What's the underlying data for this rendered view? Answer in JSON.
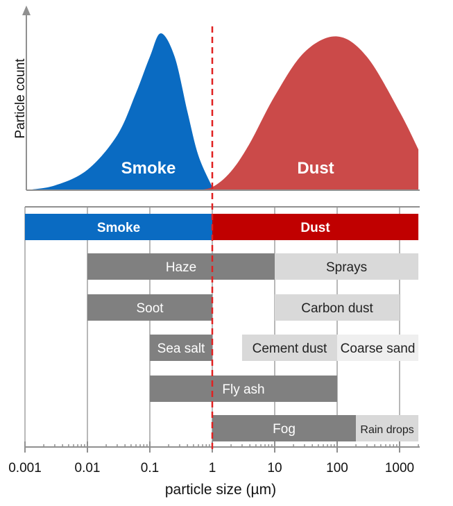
{
  "chart_data": [
    {
      "type": "area",
      "ylabel": "Particle count",
      "xscale": "log",
      "xlim": [
        0.001,
        2000
      ],
      "grid": false,
      "divider_at": 1,
      "series": [
        {
          "name": "Smoke",
          "color": "#0a6bc2",
          "peak_x": 0.15,
          "x": [
            0.001,
            0.003,
            0.01,
            0.03,
            0.06,
            0.1,
            0.15,
            0.25,
            0.4,
            0.6,
            1.0
          ],
          "y": [
            0.0,
            0.03,
            0.13,
            0.35,
            0.62,
            0.85,
            1.0,
            0.85,
            0.5,
            0.22,
            0.02
          ]
        },
        {
          "name": "Dust",
          "color": "#c8403f",
          "peak_x": 100,
          "x": [
            0.5,
            1,
            2,
            4,
            10,
            30,
            100,
            300,
            1000,
            2000
          ],
          "y": [
            0.0,
            0.02,
            0.12,
            0.3,
            0.6,
            0.88,
            0.98,
            0.85,
            0.5,
            0.26
          ]
        }
      ]
    },
    {
      "type": "bar",
      "orientation": "horizontal-range",
      "xlabel": "particle size (µm)",
      "xscale": "log",
      "xlim": [
        0.001,
        2000
      ],
      "xticks": [
        0.001,
        0.01,
        0.1,
        1,
        10,
        100,
        1000
      ],
      "xtick_labels": [
        "0.001",
        "0.01",
        "0.1",
        "1",
        "10",
        "100",
        "1000"
      ],
      "ranges": [
        {
          "label": "Smoke",
          "row": 0,
          "start": 0.001,
          "end": 1,
          "color": "#0a6bc2",
          "text_color": "#ffffff",
          "bold": true
        },
        {
          "label": "Dust",
          "row": 0,
          "start": 1,
          "end": 2000,
          "color": "#c00000",
          "text_color": "#ffffff",
          "bold": true
        },
        {
          "label": "Haze",
          "row": 1,
          "start": 0.01,
          "end": 10,
          "color": "#808080",
          "text_color": "#ffffff"
        },
        {
          "label": "Sprays",
          "row": 1,
          "start": 10,
          "end": 2000,
          "color": "#d9d9d9",
          "text_color": "#222222"
        },
        {
          "label": "Soot",
          "row": 2,
          "start": 0.01,
          "end": 1,
          "color": "#808080",
          "text_color": "#ffffff"
        },
        {
          "label": "Carbon dust",
          "row": 2,
          "start": 10,
          "end": 1000,
          "color": "#d9d9d9",
          "text_color": "#222222"
        },
        {
          "label": "Sea salt",
          "row": 3,
          "start": 0.1,
          "end": 1,
          "color": "#808080",
          "text_color": "#ffffff"
        },
        {
          "label": "Cement dust",
          "row": 3,
          "start": 3,
          "end": 100,
          "color": "#d9d9d9",
          "text_color": "#222222"
        },
        {
          "label": "Coarse sand",
          "row": 3,
          "start": 100,
          "end": 2000,
          "color": "#efefef",
          "text_color": "#222222"
        },
        {
          "label": "Fly ash",
          "row": 4,
          "start": 0.1,
          "end": 100,
          "color": "#808080",
          "text_color": "#ffffff"
        },
        {
          "label": "Fog",
          "row": 5,
          "start": 1,
          "end": 200,
          "color": "#808080",
          "text_color": "#ffffff"
        },
        {
          "label": "Rain drops",
          "row": 5,
          "start": 200,
          "end": 2000,
          "color": "#d9d9d9",
          "text_color": "#222222"
        }
      ]
    }
  ]
}
